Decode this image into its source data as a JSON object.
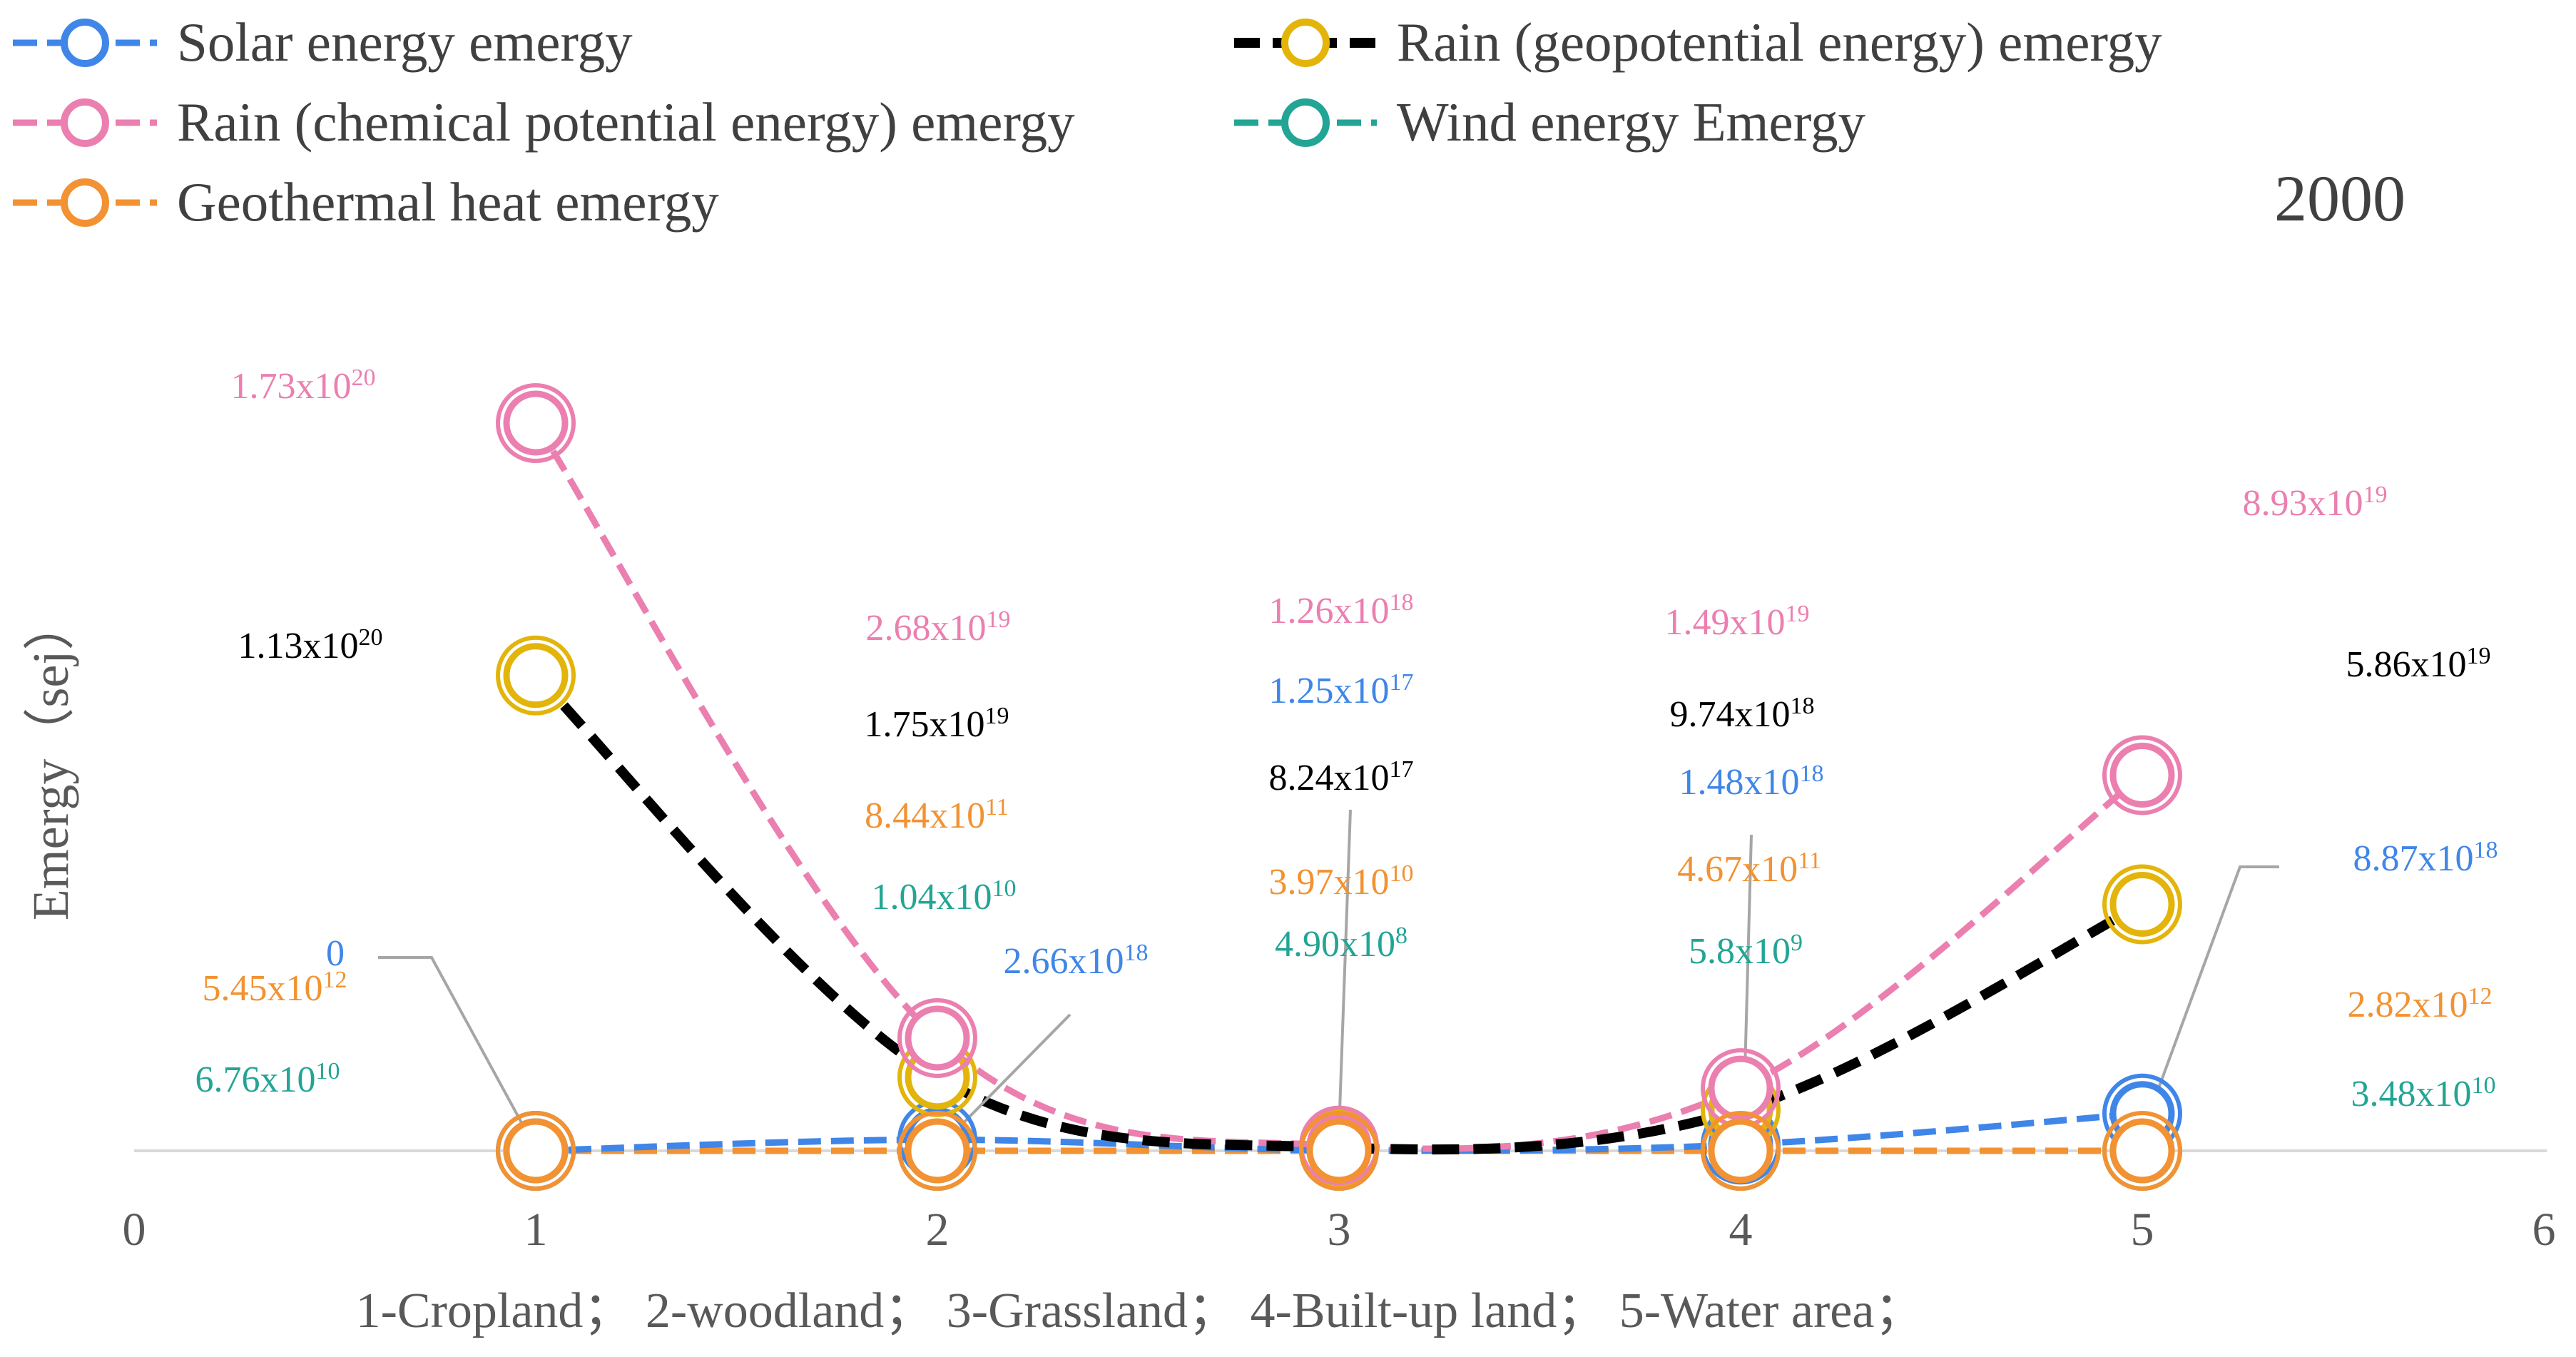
{
  "chart_data": {
    "type": "line",
    "title": "2000",
    "xlabel": "1-Cropland；  2-woodland；  3-Grassland；  4-Built-up land；  5-Water area；",
    "ylabel": "Emergy（sej）",
    "xlim": [
      0,
      6
    ],
    "x_ticks": [
      "0",
      "1",
      "2",
      "3",
      "4",
      "5",
      "6"
    ],
    "x": [
      1,
      2,
      3,
      4,
      5
    ],
    "series": [
      {
        "key": "solar",
        "name": "Solar energy emergy",
        "color": "#3f86e8",
        "dash": "dashed",
        "values": [
          0,
          2.66e+18,
          1.25e+17,
          1.48e+18,
          8.87e+18
        ],
        "labels": [
          {
            "base": "0",
            "exp": ""
          },
          {
            "base": "2.66x10",
            "exp": "18"
          },
          {
            "base": "1.25x10",
            "exp": "17"
          },
          {
            "base": "1.48x10",
            "exp": "18"
          },
          {
            "base": "8.87x10",
            "exp": "18"
          }
        ]
      },
      {
        "key": "rain_geo",
        "name": "Rain (geopotential energy) emergy",
        "color": "#000000",
        "marker_color": "#e3b40a",
        "dash": "heavy-dashed",
        "values": [
          1.13e+20,
          1.75e+19,
          8.24e+17,
          9.74e+18,
          5.86e+19
        ],
        "labels": [
          {
            "base": "1.13x10",
            "exp": "20"
          },
          {
            "base": "1.75x10",
            "exp": "19"
          },
          {
            "base": "8.24x10",
            "exp": "17"
          },
          {
            "base": "9.74x10",
            "exp": "18"
          },
          {
            "base": "5.86x10",
            "exp": "19"
          }
        ]
      },
      {
        "key": "rain_chem",
        "name": "Rain (chemical potential energy) emergy",
        "color": "#eb7fb0",
        "dash": "dashed",
        "values": [
          1.73e+20,
          2.68e+19,
          1.26e+18,
          1.49e+19,
          8.93e+19
        ],
        "labels": [
          {
            "base": "1.73x10",
            "exp": "20"
          },
          {
            "base": "2.68x10",
            "exp": "19"
          },
          {
            "base": "1.26x10",
            "exp": "18"
          },
          {
            "base": "1.49x10",
            "exp": "19"
          },
          {
            "base": "8.93x10",
            "exp": "19"
          }
        ]
      },
      {
        "key": "wind",
        "name": "Wind energy Emergy",
        "color": "#22a595",
        "dash": "dashed",
        "values": [
          67600000000.0,
          10400000000.0,
          490000000.0,
          5800000000.0,
          34800000000.0
        ],
        "labels": [
          {
            "base": "6.76x10",
            "exp": "10"
          },
          {
            "base": "1.04x10",
            "exp": "10"
          },
          {
            "base": "4.90x10",
            "exp": "8"
          },
          {
            "base": "5.8x10",
            "exp": "9"
          },
          {
            "base": "3.48x10",
            "exp": "10"
          }
        ]
      },
      {
        "key": "geo",
        "name": "Geothermal heat emergy",
        "color": "#f29232",
        "dash": "dashed",
        "values": [
          5450000000000.0,
          844000000000.0,
          39700000000.0,
          467000000000.0,
          2820000000000.0
        ],
        "labels": [
          {
            "base": "5.45x10",
            "exp": "12"
          },
          {
            "base": "8.44x10",
            "exp": "11"
          },
          {
            "base": "3.97x10",
            "exp": "10"
          },
          {
            "base": "4.67x10",
            "exp": "11"
          },
          {
            "base": "2.82x10",
            "exp": "12"
          }
        ]
      }
    ]
  }
}
